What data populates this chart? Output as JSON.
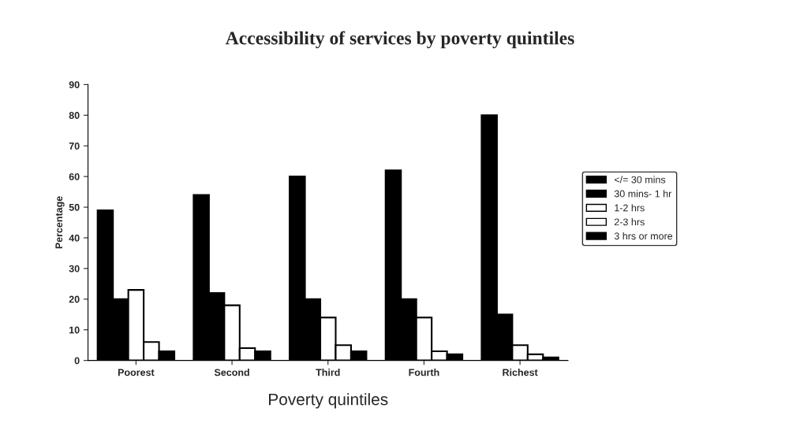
{
  "chart_data": {
    "type": "bar",
    "title": "Accessibility of services by poverty quintiles",
    "xlabel": "Poverty quintiles",
    "ylabel": "Percentage",
    "categories": [
      "Poorest",
      "Second",
      "Third",
      "Fourth",
      "Richest"
    ],
    "series": [
      {
        "name": "</= 30 mins",
        "color": "#000000",
        "values": [
          49,
          54,
          60,
          62,
          80
        ]
      },
      {
        "name": "30 mins- 1 hr",
        "color": "#000000",
        "values": [
          20,
          22,
          20,
          20,
          15
        ]
      },
      {
        "name": "1-2 hrs",
        "color": "#ffffff",
        "values": [
          23,
          18,
          14,
          14,
          5
        ]
      },
      {
        "name": "2-3 hrs",
        "color": "#ffffff",
        "values": [
          6,
          4,
          5,
          3,
          2
        ]
      },
      {
        "name": "3 hrs or more",
        "color": "#000000",
        "values": [
          3,
          3,
          3,
          2,
          1
        ]
      }
    ],
    "ylim": [
      0,
      90
    ],
    "yticks": [
      0,
      10,
      20,
      30,
      40,
      50,
      60,
      70,
      80,
      90
    ],
    "grid": false,
    "legend": "right"
  }
}
